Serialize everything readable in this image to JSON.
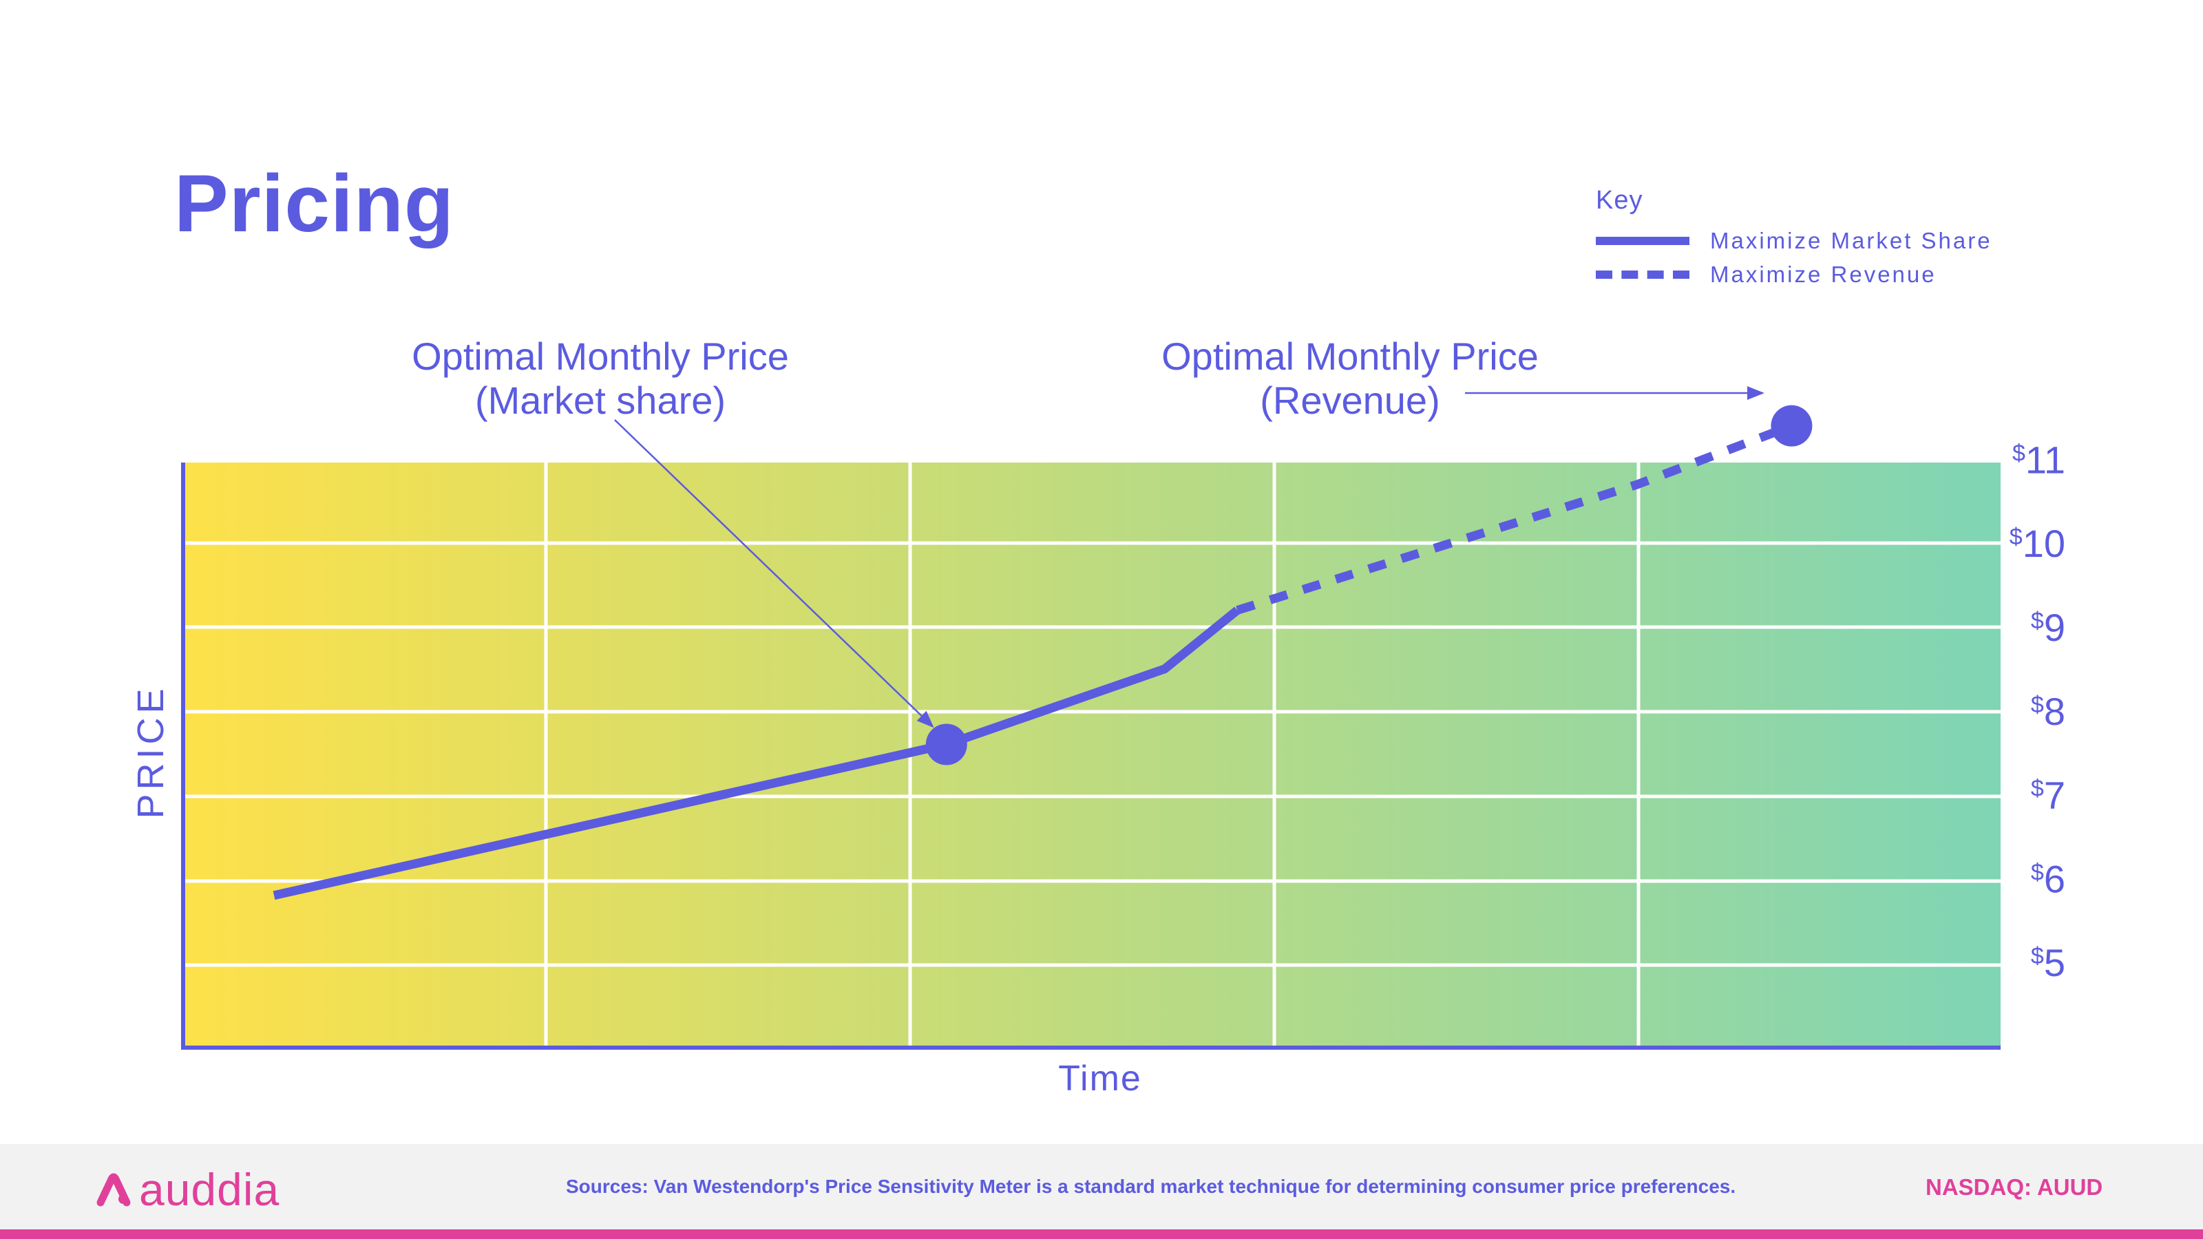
{
  "title": "Pricing",
  "key": {
    "title": "Key",
    "items": [
      {
        "label": "Maximize Market Share",
        "style": "solid"
      },
      {
        "label": "Maximize Revenue",
        "style": "dashed"
      }
    ]
  },
  "colors": {
    "accent": "#5b5be0",
    "brand": "#e0409a",
    "gradient_start": "#fde14a",
    "gradient_end": "#7fd5b5",
    "grid": "#ffffff"
  },
  "chart_data": {
    "type": "line",
    "xlabel": "Time",
    "ylabel": "PRICE",
    "y_axis_position": "right",
    "y_ticks": [
      {
        "value": 5,
        "label": "5"
      },
      {
        "value": 6,
        "label": "6"
      },
      {
        "value": 7,
        "label": "7"
      },
      {
        "value": 8,
        "label": "8"
      },
      {
        "value": 9,
        "label": "9"
      },
      {
        "value": 10,
        "label": "10"
      },
      {
        "value": 11,
        "label": "11"
      }
    ],
    "currency_symbol": "$",
    "ylim": [
      4,
      11.2
    ],
    "xlim": [
      0,
      10
    ],
    "grid": true,
    "legend_position": "top-right",
    "series": [
      {
        "name": "Maximize Market Share",
        "style": "solid",
        "points": [
          [
            0.5,
            5.8
          ],
          [
            4.2,
            7.6
          ],
          [
            5.4,
            8.5
          ],
          [
            5.8,
            9.2
          ]
        ]
      },
      {
        "name": "Maximize Revenue",
        "style": "dashed",
        "points": [
          [
            5.8,
            9.2
          ],
          [
            8.0,
            10.7
          ],
          [
            8.85,
            11.4
          ]
        ]
      }
    ],
    "annotations": [
      {
        "text_line1": "Optimal Monthly Price",
        "text_line2": "(Market share)",
        "point": [
          4.2,
          7.6
        ]
      },
      {
        "text_line1": "Optimal Monthly Price",
        "text_line2": "(Revenue)",
        "point": [
          8.85,
          11.4
        ]
      }
    ]
  },
  "footer": {
    "logo_text": "auddia",
    "sources": "Sources: Van Westendorp's Price Sensitivity Meter is a standard market technique for determining consumer price preferences.",
    "ticker": "NASDAQ: AUUD"
  }
}
